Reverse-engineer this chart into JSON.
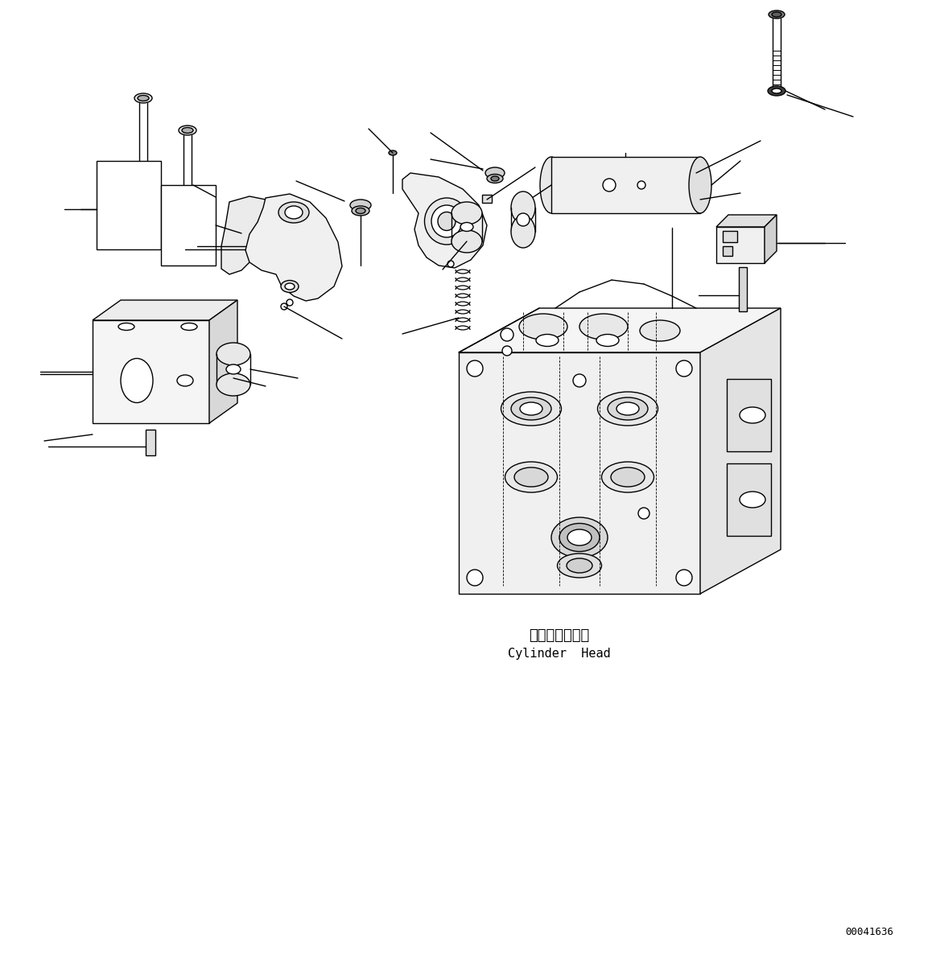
{
  "bg_color": "#ffffff",
  "line_color": "#000000",
  "fig_width": 11.63,
  "fig_height": 11.87,
  "dpi": 100,
  "part_number": "00041636",
  "label_japanese": "シリンダヘッド",
  "label_english": "Cylinder  Head"
}
